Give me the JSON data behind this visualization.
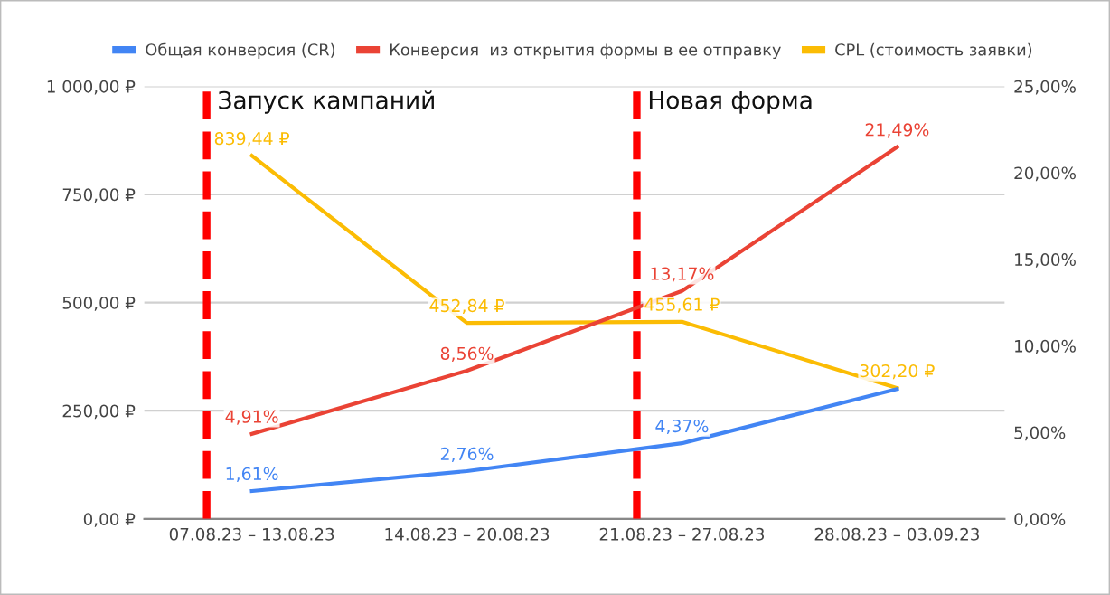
{
  "chart_data": {
    "type": "line",
    "categories": [
      "07.08.23 – 13.08.23",
      "14.08.23 – 20.08.23",
      "21.08.23 – 27.08.23",
      "28.08.23 – 03.09.23"
    ],
    "series": [
      {
        "name": "Общая конверсия (CR)",
        "color": "#4285f4",
        "axis": "y2",
        "values": [
          1.61,
          2.76,
          4.37,
          7.5
        ],
        "value_labels": [
          "1,61%",
          "2,76%",
          "4,37%",
          null
        ]
      },
      {
        "name": "Конверсия  из открытия формы в ее отправку",
        "color": "#ea4335",
        "axis": "y2",
        "values": [
          4.91,
          8.56,
          13.17,
          21.49
        ],
        "value_labels": [
          "4,91%",
          "8,56%",
          "13,17%",
          "21,49%"
        ]
      },
      {
        "name": "CPL (стоимость заявки)",
        "color": "#fbbc04",
        "values": [
          839.44,
          452.84,
          455.61,
          302.2
        ],
        "value_labels": [
          "839,44 ₽",
          "452,84 ₽",
          "455,61 ₽",
          "302,20 ₽"
        ]
      }
    ],
    "ylim": [
      0,
      1000
    ],
    "yticks": [
      {
        "value": 0,
        "label": "0,00 ₽"
      },
      {
        "value": 250,
        "label": "250,00 ₽"
      },
      {
        "value": 500,
        "label": "500,00 ₽"
      },
      {
        "value": 750,
        "label": "750,00 ₽"
      },
      {
        "value": 1000,
        "label": "1 000,00 ₽"
      }
    ],
    "y2lim": [
      0,
      25
    ],
    "y2ticks": [
      {
        "value": 0,
        "label": "0,00%"
      },
      {
        "value": 5,
        "label": "5,00%"
      },
      {
        "value": 10,
        "label": "10,00%"
      },
      {
        "value": 15,
        "label": "15,00%"
      },
      {
        "value": 20,
        "label": "20,00%"
      },
      {
        "value": 25,
        "label": "25,00%"
      }
    ],
    "ref_lines": [
      {
        "axis": "x",
        "value": "07.08.23 – 13.08.23",
        "label": "Запуск кампаний",
        "color": "#ff0000",
        "line_style": "dashed"
      },
      {
        "axis": "x",
        "value": "21.08.23 – 27.08.23",
        "label": "Новая форма",
        "color": "#ff0000",
        "line_style": "dashed"
      }
    ],
    "grid": "y",
    "legend": "top",
    "marker": "none",
    "line_style": "solid"
  }
}
